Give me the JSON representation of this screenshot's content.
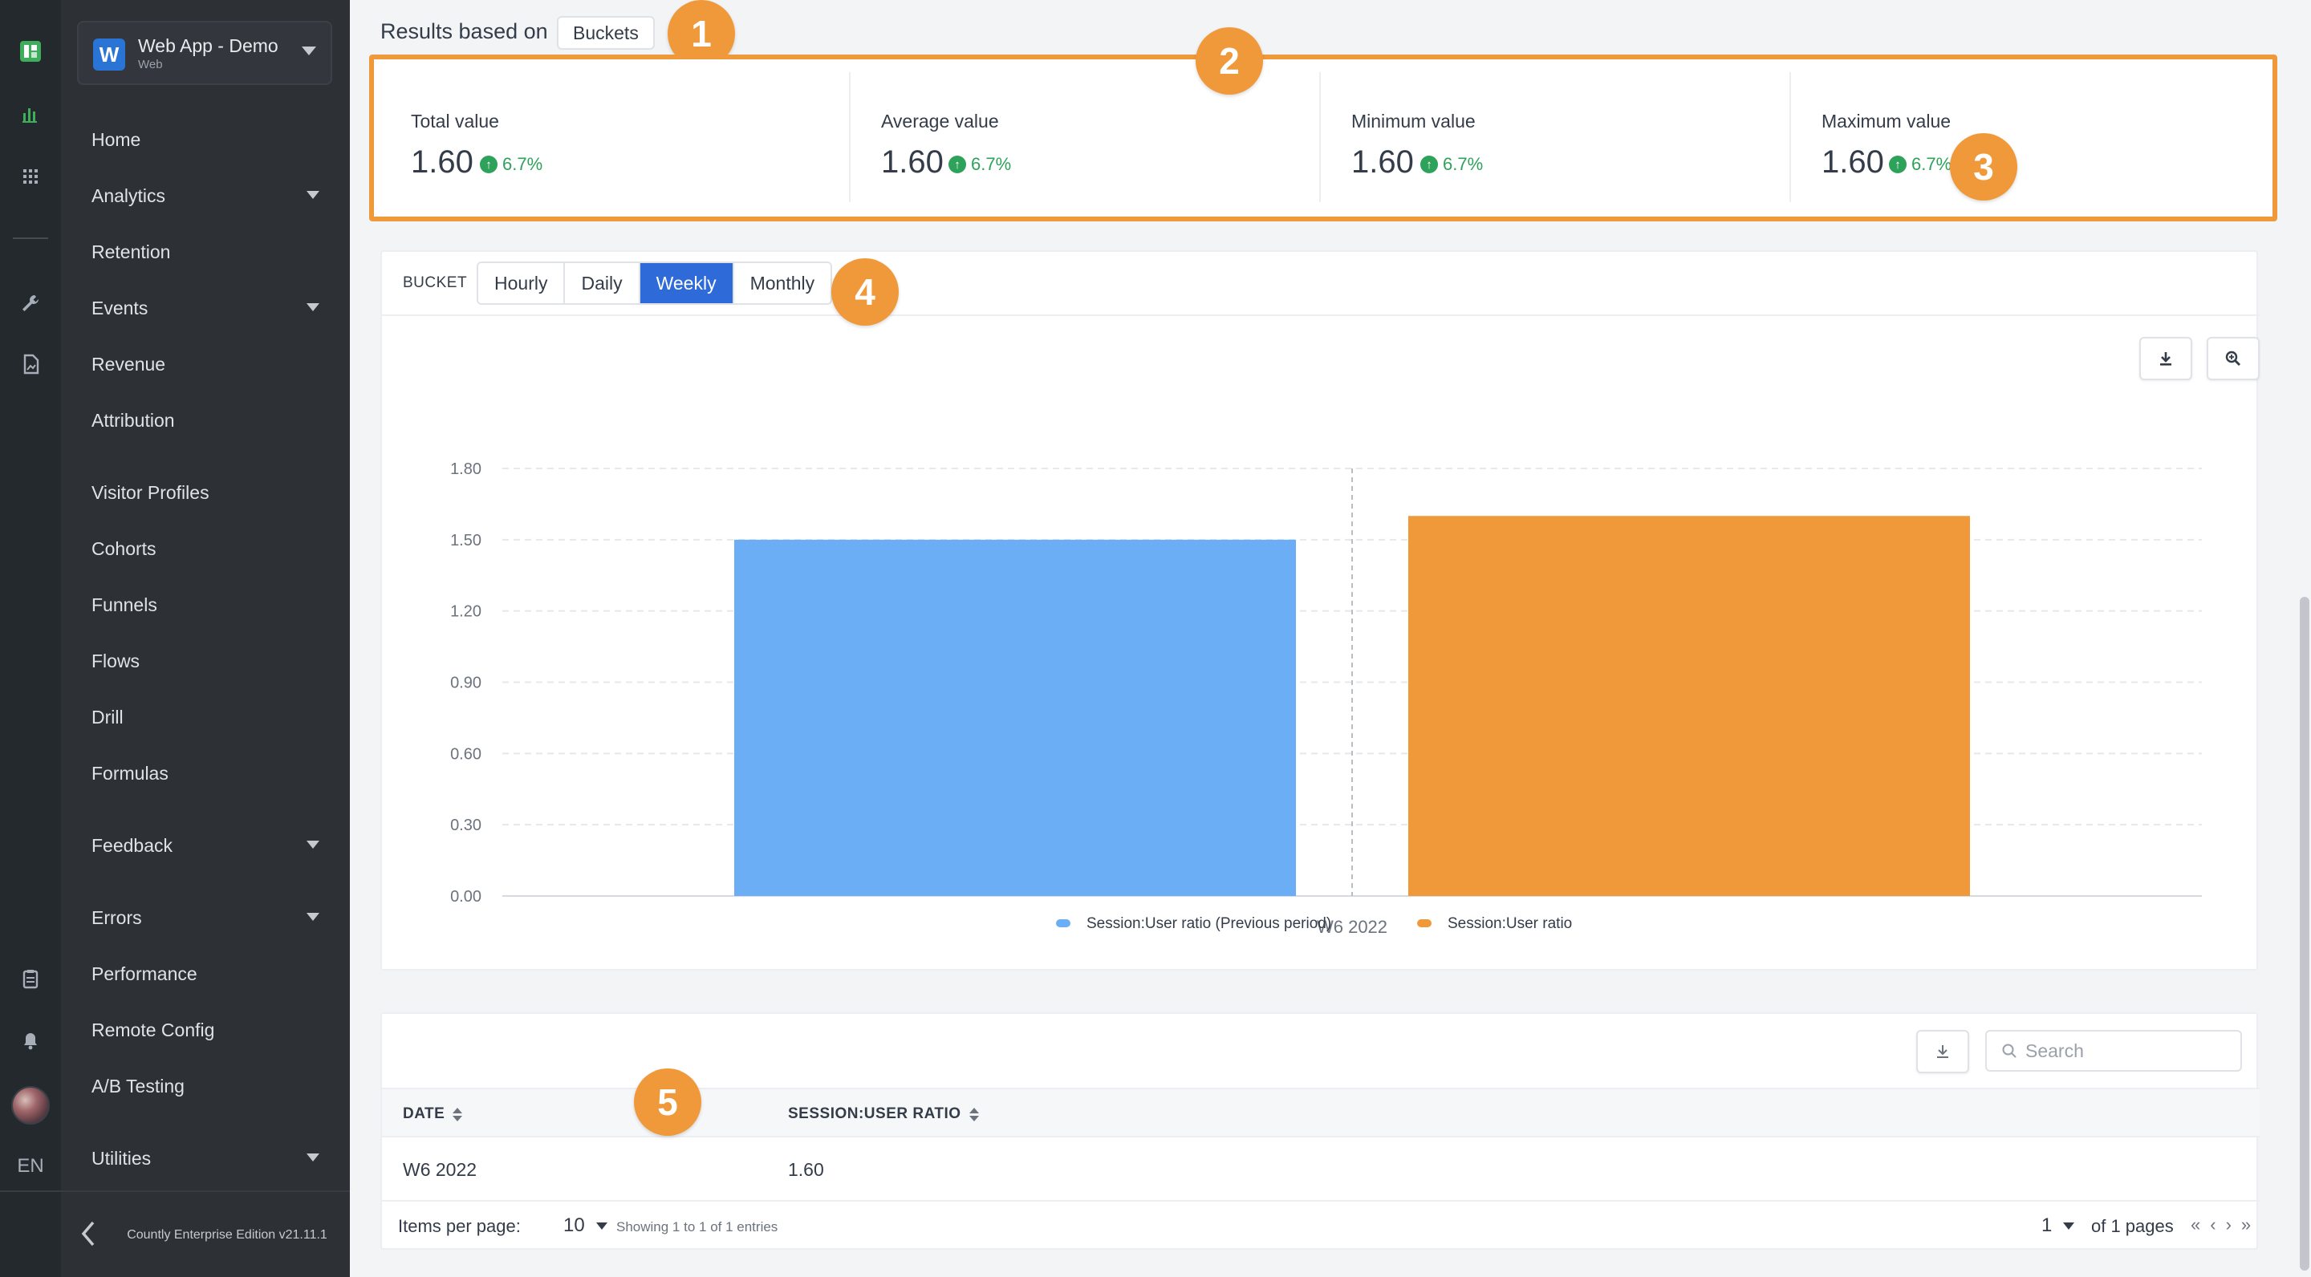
{
  "rail": {
    "language": "EN",
    "icons": [
      "countly-logo-icon",
      "analytics-icon",
      "apps-grid-icon",
      "wrench-icon",
      "report-icon",
      "clipboard-icon",
      "bell-icon"
    ]
  },
  "sidebar": {
    "app": {
      "logo_letter": "W",
      "name": "Web App - Demo",
      "platform": "Web"
    },
    "items": [
      {
        "label": "Home",
        "has_submenu": false
      },
      {
        "label": "Analytics",
        "has_submenu": true
      },
      {
        "label": "Retention",
        "has_submenu": false
      },
      {
        "label": "Events",
        "has_submenu": true
      },
      {
        "label": "Revenue",
        "has_submenu": false
      },
      {
        "label": "Attribution",
        "has_submenu": false
      },
      {
        "label": "Visitor Profiles",
        "has_submenu": false
      },
      {
        "label": "Cohorts",
        "has_submenu": false
      },
      {
        "label": "Funnels",
        "has_submenu": false
      },
      {
        "label": "Flows",
        "has_submenu": false
      },
      {
        "label": "Drill",
        "has_submenu": false
      },
      {
        "label": "Formulas",
        "has_submenu": false
      },
      {
        "label": "Feedback",
        "has_submenu": true
      },
      {
        "label": "Errors",
        "has_submenu": true
      },
      {
        "label": "Performance",
        "has_submenu": false
      },
      {
        "label": "Remote Config",
        "has_submenu": false
      },
      {
        "label": "A/B Testing",
        "has_submenu": false
      },
      {
        "label": "Utilities",
        "has_submenu": true
      }
    ],
    "edition": "Countly Enterprise Edition v21.11.1"
  },
  "results": {
    "label": "Results based on",
    "chip": "Buckets"
  },
  "callouts": [
    "1",
    "2",
    "3",
    "4",
    "5"
  ],
  "stats": [
    {
      "label": "Total value",
      "value": "1.60",
      "trend": "6.7%"
    },
    {
      "label": "Average value",
      "value": "1.60",
      "trend": "6.7%"
    },
    {
      "label": "Minimum value",
      "value": "1.60",
      "trend": "6.7%"
    },
    {
      "label": "Maximum value",
      "value": "1.60",
      "trend": "6.7%"
    }
  ],
  "bucket": {
    "label": "BUCKET",
    "options": [
      "Hourly",
      "Daily",
      "Weekly",
      "Monthly"
    ],
    "selected": "Weekly"
  },
  "chart_data": {
    "type": "bar",
    "categories": [
      "W6 2022"
    ],
    "series": [
      {
        "name": "Session:User ratio (Previous period)",
        "values": [
          1.5
        ],
        "color": "#6caef6"
      },
      {
        "name": "Session:User ratio",
        "values": [
          1.6
        ],
        "color": "#f0993a"
      }
    ],
    "ylim": [
      0,
      1.8
    ],
    "yticks": [
      "0.00",
      "0.30",
      "0.60",
      "0.90",
      "1.20",
      "1.50",
      "1.80"
    ],
    "grid": true,
    "legend": "bottom-center"
  },
  "table": {
    "search_placeholder": "Search",
    "columns": [
      "DATE",
      "SESSION:USER RATIO"
    ],
    "rows": [
      [
        "W6 2022",
        "1.60"
      ]
    ],
    "pagination": {
      "items_label": "Items per page:",
      "per_page": "10",
      "showing": "Showing 1 to 1 of 1 entries",
      "page": "1",
      "of_pages": "of 1 pages"
    }
  },
  "colors": {
    "accent": "#2f6ad9",
    "highlight": "#f0993a",
    "positive": "#2ea25a"
  }
}
